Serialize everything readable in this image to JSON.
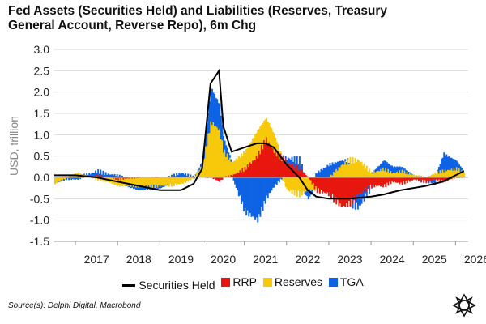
{
  "chart_data": {
    "type": "area",
    "title_line1": "Fed Assets (Securities Held) and Liabilities (Reserves, Treasury",
    "title_line2": "General Account, Reverse Repo), 6m Chg",
    "ylabel": "USD, trillion",
    "ylim": [
      -1.5,
      3.0
    ],
    "yticks": [
      "3.0",
      "2.5",
      "2.0",
      "1.5",
      "1.0",
      "0.5",
      "0.0",
      "-0.5",
      "-1.0",
      "-1.5"
    ],
    "xlim": [
      2016.5,
      2026.3
    ],
    "xticks": [
      "2017",
      "2018",
      "2019",
      "2020",
      "2021",
      "2022",
      "2023",
      "2024",
      "2025",
      "2026"
    ],
    "grid": "horizontal",
    "legend_position": "bottom",
    "x": [
      2016.5,
      2017.0,
      2017.5,
      2018.0,
      2018.5,
      2019.0,
      2019.5,
      2019.8,
      2020.0,
      2020.2,
      2020.4,
      2020.5,
      2020.7,
      2021.0,
      2021.3,
      2021.5,
      2021.7,
      2022.0,
      2022.3,
      2022.5,
      2022.7,
      2023.0,
      2023.3,
      2023.5,
      2023.7,
      2024.0,
      2024.3,
      2024.5,
      2024.7,
      2025.0,
      2025.3,
      2025.5,
      2025.7,
      2026.0,
      2026.2
    ],
    "series": [
      {
        "name": "Securities Held",
        "kind": "line",
        "color": "#000000",
        "values": [
          0.05,
          0.05,
          0.0,
          -0.1,
          -0.2,
          -0.3,
          -0.3,
          -0.15,
          0.2,
          2.2,
          2.5,
          1.2,
          0.6,
          0.7,
          0.8,
          0.8,
          0.7,
          0.3,
          0.0,
          -0.3,
          -0.45,
          -0.5,
          -0.5,
          -0.5,
          -0.48,
          -0.45,
          -0.4,
          -0.35,
          -0.3,
          -0.25,
          -0.2,
          -0.15,
          -0.1,
          0.05,
          0.15
        ]
      },
      {
        "name": "RRP",
        "kind": "bar",
        "color": "#e8170e",
        "values": [
          0.0,
          0.0,
          0.05,
          -0.05,
          0.0,
          0.0,
          0.0,
          0.0,
          0.0,
          0.0,
          -0.1,
          0.0,
          0.05,
          0.2,
          0.5,
          0.9,
          0.6,
          0.35,
          0.2,
          0.0,
          -0.3,
          -0.4,
          -0.7,
          -0.6,
          -0.4,
          -0.2,
          -0.2,
          -0.1,
          -0.15,
          -0.05,
          -0.1,
          -0.05,
          -0.1,
          0.0,
          0.0
        ]
      },
      {
        "name": "Reserves",
        "kind": "bar",
        "color": "#f7c90b",
        "values": [
          -0.15,
          0.1,
          -0.05,
          -0.15,
          -0.2,
          -0.2,
          -0.15,
          0.0,
          0.3,
          1.3,
          1.1,
          0.6,
          0.3,
          0.4,
          0.6,
          0.5,
          0.4,
          -0.3,
          -0.4,
          -0.3,
          0.0,
          0.0,
          0.3,
          0.4,
          0.4,
          0.1,
          0.2,
          0.1,
          0.15,
          0.05,
          0.0,
          0.1,
          0.15,
          0.2,
          0.1
        ]
      },
      {
        "name": "TGA",
        "kind": "bar",
        "color": "#0d63e3",
        "values": [
          0.0,
          -0.05,
          0.1,
          0.05,
          -0.1,
          -0.05,
          0.1,
          0.0,
          0.1,
          0.8,
          0.6,
          0.3,
          0.0,
          -0.8,
          -1.0,
          -0.5,
          -0.2,
          0.1,
          0.2,
          -0.2,
          0.1,
          0.3,
          0.1,
          0.0,
          -0.3,
          0.0,
          0.2,
          0.15,
          0.1,
          0.0,
          0.0,
          -0.1,
          0.4,
          0.2,
          0.0
        ]
      }
    ],
    "legend": [
      "Securities Held",
      "RRP",
      "Reserves",
      "TGA"
    ]
  },
  "source_text": "Source(s): Delphi Digital, Macrobond",
  "logo_icon": "delphi-logo-icon"
}
